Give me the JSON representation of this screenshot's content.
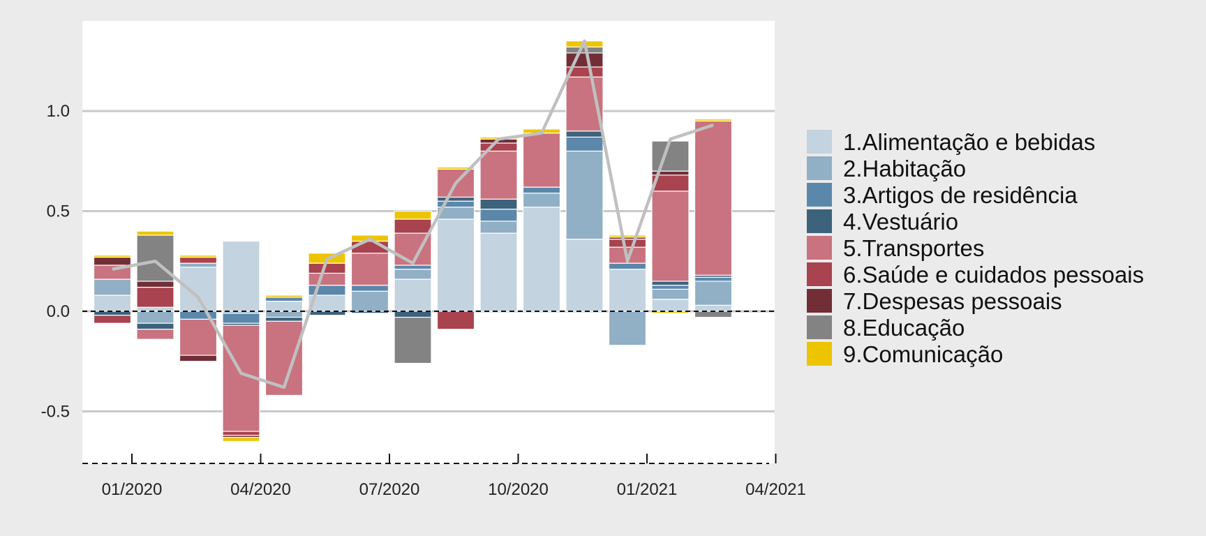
{
  "chart_data": {
    "type": "bar",
    "stacked": true,
    "categories": [
      "01/2020",
      "02/2020",
      "03/2020",
      "04/2020",
      "05/2020",
      "06/2020",
      "07/2020",
      "08/2020",
      "09/2020",
      "10/2020",
      "11/2020",
      "12/2020",
      "01/2021",
      "02/2021",
      "03/2021"
    ],
    "x_tick_labels": [
      "01/2020",
      "04/2020",
      "07/2020",
      "10/2020",
      "01/2021",
      "04/2021"
    ],
    "y_tick_labels": [
      "1.0",
      "0.5",
      "0.0",
      "-0.5"
    ],
    "y_ticks": [
      1.0,
      0.5,
      0.0,
      -0.5
    ],
    "ylim": [
      -0.76,
      1.45
    ],
    "grid": true,
    "legend_position": "right",
    "series": [
      {
        "name": "1.Alimentação e bebidas",
        "color": "#c3d3df",
        "values": [
          0.08,
          0.02,
          0.22,
          0.35,
          0.05,
          0.08,
          0.0,
          0.16,
          0.46,
          0.39,
          0.52,
          0.36,
          0.21,
          0.06,
          0.03
        ]
      },
      {
        "name": "2.Habitação",
        "color": "#91afc5",
        "values": [
          0.08,
          -0.06,
          0.02,
          -0.01,
          -0.03,
          0.0,
          0.1,
          0.05,
          0.06,
          0.06,
          0.07,
          0.44,
          -0.17,
          0.05,
          0.12
        ]
      },
      {
        "name": "3.Artigos de residência",
        "color": "#5b88aa",
        "values": [
          0.0,
          0.0,
          -0.04,
          -0.05,
          0.02,
          0.05,
          0.03,
          0.02,
          0.03,
          0.06,
          0.03,
          0.07,
          0.03,
          0.02,
          0.02
        ]
      },
      {
        "name": "4.Vestuário",
        "color": "#3d627c",
        "values": [
          -0.02,
          -0.03,
          0.0,
          -0.01,
          -0.02,
          -0.02,
          -0.01,
          -0.03,
          0.02,
          0.05,
          0.0,
          0.03,
          0.0,
          0.02,
          0.01
        ]
      },
      {
        "name": "5.Transportes",
        "color": "#c8737f",
        "values": [
          0.07,
          -0.05,
          -0.18,
          -0.53,
          -0.37,
          0.06,
          0.16,
          0.16,
          0.14,
          0.24,
          0.27,
          0.27,
          0.08,
          0.45,
          0.77
        ]
      },
      {
        "name": "6.Saúde e cuidados pessoais",
        "color": "#a8434f",
        "values": [
          -0.04,
          0.1,
          0.03,
          -0.02,
          0.0,
          0.05,
          0.06,
          0.07,
          -0.09,
          0.04,
          0.0,
          0.05,
          0.04,
          0.08,
          0.0
        ]
      },
      {
        "name": "7.Despesas pessoais",
        "color": "#722e37",
        "values": [
          0.04,
          0.03,
          -0.03,
          -0.01,
          0.0,
          0.0,
          0.0,
          0.0,
          0.0,
          0.02,
          0.0,
          0.07,
          0.01,
          0.02,
          0.0
        ]
      },
      {
        "name": "8.Educação",
        "color": "#838383",
        "values": [
          0.0,
          0.23,
          0.0,
          0.0,
          0.0,
          0.0,
          0.0,
          -0.23,
          0.0,
          0.0,
          0.0,
          0.03,
          0.0,
          0.15,
          -0.03
        ]
      },
      {
        "name": "9.Comunicação",
        "color": "#ecc500",
        "values": [
          0.01,
          0.02,
          0.01,
          -0.02,
          0.01,
          0.05,
          0.03,
          0.04,
          0.01,
          0.01,
          0.02,
          0.03,
          0.01,
          -0.01,
          0.01
        ]
      }
    ],
    "total_line": {
      "color": "#c0c0c0",
      "values": [
        0.21,
        0.25,
        0.07,
        -0.31,
        -0.38,
        0.26,
        0.36,
        0.24,
        0.64,
        0.86,
        0.89,
        1.35,
        0.25,
        0.86,
        0.93
      ]
    }
  }
}
